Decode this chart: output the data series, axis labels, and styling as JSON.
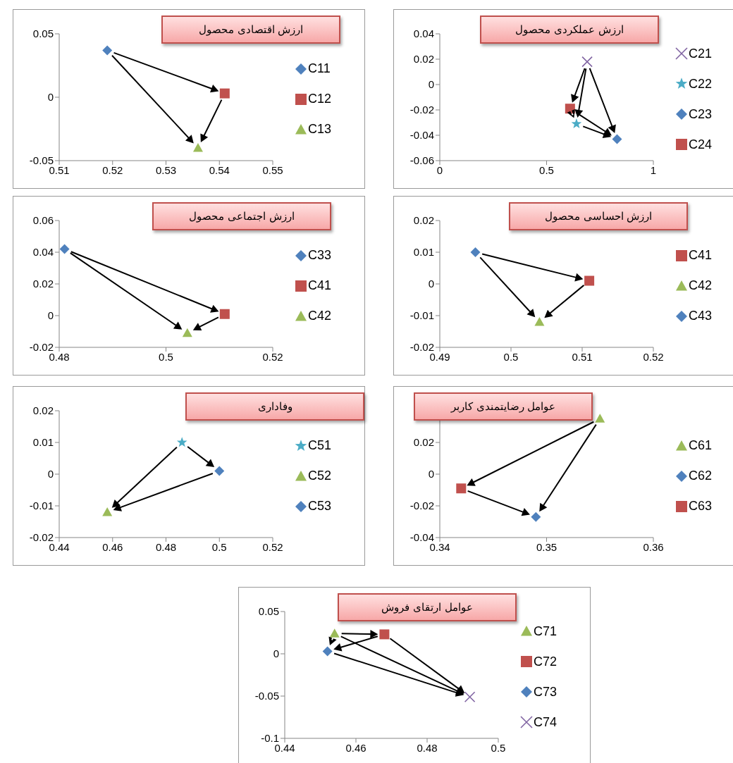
{
  "chart_data": [
    {
      "type": "scatter",
      "title": "ارزش اقتصادی محصول",
      "xlim": [
        0.51,
        0.55
      ],
      "xticks": [
        0.51,
        0.52,
        0.53,
        0.54,
        0.55
      ],
      "ylim": [
        -0.05,
        0.05
      ],
      "yticks": [
        -0.05,
        0,
        0.05
      ],
      "legend": "right",
      "series": [
        {
          "name": "C11",
          "color": "#4f81bd",
          "marker": "diamond",
          "x": [
            0.519
          ],
          "values": [
            0.037
          ]
        },
        {
          "name": "C12",
          "color": "#c0504d",
          "marker": "square",
          "x": [
            0.541
          ],
          "values": [
            0.003
          ]
        },
        {
          "name": "C13",
          "color": "#9bbb59",
          "marker": "triangle",
          "x": [
            0.536
          ],
          "values": [
            -0.04
          ]
        }
      ]
    },
    {
      "type": "scatter",
      "title": "ارزش عملکردی محصول",
      "xlim": [
        0,
        1
      ],
      "xticks": [
        0,
        0.5,
        1
      ],
      "ylim": [
        -0.06,
        0.04
      ],
      "yticks": [
        -0.06,
        -0.04,
        -0.02,
        0,
        0.02,
        0.04
      ],
      "legend": "right",
      "series": [
        {
          "name": "C21",
          "color": "#8064a2",
          "marker": "cross",
          "x": [
            0.69
          ],
          "values": [
            0.018
          ]
        },
        {
          "name": "C22",
          "color": "#4bacc6",
          "marker": "star",
          "x": [
            0.64
          ],
          "values": [
            -0.031
          ]
        },
        {
          "name": "C23",
          "color": "#4f81bd",
          "marker": "diamond",
          "x": [
            0.83
          ],
          "values": [
            -0.043
          ]
        },
        {
          "name": "C24",
          "color": "#c0504d",
          "marker": "square",
          "x": [
            0.61
          ],
          "values": [
            -0.019
          ]
        }
      ]
    },
    {
      "type": "scatter",
      "title": "ارزش اجتماعی محصول",
      "xlim": [
        0.48,
        0.52
      ],
      "xticks": [
        0.48,
        0.5,
        0.52
      ],
      "ylim": [
        -0.02,
        0.06
      ],
      "yticks": [
        -0.02,
        0,
        0.02,
        0.04,
        0.06
      ],
      "legend": "right",
      "series": [
        {
          "name": "C33",
          "color": "#4f81bd",
          "marker": "diamond",
          "x": [
            0.481
          ],
          "values": [
            0.042
          ]
        },
        {
          "name": "C41",
          "color": "#c0504d",
          "marker": "square",
          "x": [
            0.511
          ],
          "values": [
            0.001
          ]
        },
        {
          "name": "C42",
          "color": "#9bbb59",
          "marker": "triangle",
          "x": [
            0.504
          ],
          "values": [
            -0.011
          ]
        }
      ]
    },
    {
      "type": "scatter",
      "title": "ارزش احساسی محصول",
      "xlim": [
        0.49,
        0.52
      ],
      "xticks": [
        0.49,
        0.5,
        0.51,
        0.52
      ],
      "ylim": [
        -0.02,
        0.02
      ],
      "yticks": [
        -0.02,
        -0.01,
        0,
        0.01,
        0.02
      ],
      "legend": "right",
      "series": [
        {
          "name": "C41",
          "color": "#c0504d",
          "marker": "square",
          "x": [
            0.511
          ],
          "values": [
            0.001
          ]
        },
        {
          "name": "C42",
          "color": "#9bbb59",
          "marker": "triangle",
          "x": [
            0.504
          ],
          "values": [
            -0.012
          ]
        },
        {
          "name": "C43",
          "color": "#4f81bd",
          "marker": "diamond",
          "x": [
            0.495
          ],
          "values": [
            0.01
          ]
        }
      ]
    },
    {
      "type": "scatter",
      "title": "وفاداری",
      "xlim": [
        0.44,
        0.52
      ],
      "xticks": [
        0.44,
        0.46,
        0.48,
        0.5,
        0.52
      ],
      "ylim": [
        -0.02,
        0.02
      ],
      "yticks": [
        -0.02,
        -0.01,
        0,
        0.01,
        0.02
      ],
      "legend": "right",
      "series": [
        {
          "name": "C51",
          "color": "#4bacc6",
          "marker": "star",
          "x": [
            0.486
          ],
          "values": [
            0.01
          ]
        },
        {
          "name": "C52",
          "color": "#9bbb59",
          "marker": "triangle",
          "x": [
            0.458
          ],
          "values": [
            -0.012
          ]
        },
        {
          "name": "C53",
          "color": "#4f81bd",
          "marker": "diamond",
          "x": [
            0.5
          ],
          "values": [
            0.001
          ]
        }
      ]
    },
    {
      "type": "scatter",
      "title": "عوامل رضایتمندی کاربر",
      "xlim": [
        0.34,
        0.36
      ],
      "xticks": [
        0.34,
        0.35,
        0.36
      ],
      "ylim": [
        -0.04,
        0.04
      ],
      "yticks": [
        -0.04,
        -0.02,
        0,
        0.02
      ],
      "legend": "right",
      "series": [
        {
          "name": "C61",
          "color": "#9bbb59",
          "marker": "triangle",
          "x": [
            0.355
          ],
          "values": [
            0.035
          ]
        },
        {
          "name": "C62",
          "color": "#4f81bd",
          "marker": "diamond",
          "x": [
            0.349
          ],
          "values": [
            -0.027
          ]
        },
        {
          "name": "C63",
          "color": "#c0504d",
          "marker": "square",
          "x": [
            0.342
          ],
          "values": [
            -0.009
          ]
        }
      ]
    },
    {
      "type": "scatter",
      "title": "عوامل ارتقای فروش",
      "xlim": [
        0.44,
        0.5
      ],
      "xticks": [
        0.44,
        0.46,
        0.48,
        0.5
      ],
      "ylim": [
        -0.1,
        0.05
      ],
      "yticks": [
        -0.1,
        -0.05,
        0,
        0.05
      ],
      "legend": "right",
      "series": [
        {
          "name": "C71",
          "color": "#9bbb59",
          "marker": "triangle",
          "x": [
            0.454
          ],
          "values": [
            0.024
          ]
        },
        {
          "name": "C72",
          "color": "#c0504d",
          "marker": "square",
          "x": [
            0.468
          ],
          "values": [
            0.023
          ]
        },
        {
          "name": "C73",
          "color": "#4f81bd",
          "marker": "diamond",
          "x": [
            0.452
          ],
          "values": [
            0.003
          ]
        },
        {
          "name": "C74",
          "color": "#8064a2",
          "marker": "cross",
          "x": [
            0.492
          ],
          "values": [
            -0.051
          ]
        }
      ]
    }
  ]
}
